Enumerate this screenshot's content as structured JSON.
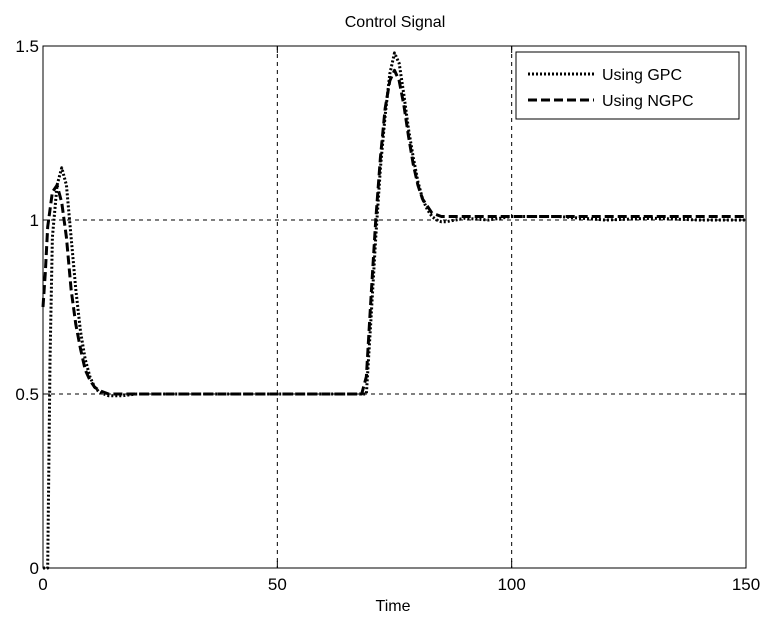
{
  "chart_data": {
    "type": "line",
    "title": "Control Signal",
    "xlabel": "Time",
    "ylabel": "",
    "xlim": [
      0,
      150
    ],
    "ylim": [
      0,
      1.5
    ],
    "xticks": [
      0,
      50,
      100,
      150
    ],
    "xtick_labels": [
      "0",
      "50",
      "100",
      "150"
    ],
    "yticks": [
      0,
      0.5,
      1,
      1.5
    ],
    "ytick_labels": [
      "0",
      "0.5",
      "1",
      "1.5"
    ],
    "grid": true,
    "legend_position": "top-right",
    "series": [
      {
        "name": "Using GPC",
        "style": "dotted",
        "color": "#000000",
        "x": [
          0,
          1,
          1.5,
          2,
          3,
          4,
          5,
          6,
          7,
          8,
          9,
          10,
          11,
          12,
          13,
          14,
          15,
          17,
          20,
          25,
          30,
          40,
          50,
          60,
          65,
          68,
          69,
          70,
          71,
          72,
          73,
          74,
          75,
          76,
          77,
          78,
          79,
          80,
          81,
          82,
          83,
          84,
          85,
          86,
          88,
          90,
          95,
          100,
          110,
          120,
          130,
          140,
          150
        ],
        "y": [
          0,
          0,
          0.6,
          0.95,
          1.1,
          1.15,
          1.1,
          0.95,
          0.8,
          0.68,
          0.6,
          0.55,
          0.52,
          0.505,
          0.5,
          0.495,
          0.495,
          0.495,
          0.5,
          0.5,
          0.5,
          0.5,
          0.5,
          0.5,
          0.5,
          0.5,
          0.5,
          0.72,
          0.95,
          1.15,
          1.3,
          1.42,
          1.48,
          1.45,
          1.36,
          1.26,
          1.18,
          1.11,
          1.06,
          1.03,
          1.01,
          1.0,
          0.995,
          0.995,
          1.0,
          1.005,
          1.0,
          1.01,
          1.01,
          1.0,
          1.005,
          1.0,
          1.0
        ]
      },
      {
        "name": "Using NGPC",
        "style": "dashed",
        "color": "#000000",
        "x": [
          0,
          0.5,
          1,
          2,
          3,
          4,
          5,
          6,
          7,
          8,
          9,
          10,
          11,
          12,
          13,
          14,
          15,
          17,
          20,
          25,
          30,
          40,
          50,
          60,
          65,
          68,
          69,
          70,
          71,
          72,
          73,
          74,
          75,
          76,
          77,
          78,
          79,
          80,
          81,
          82,
          83,
          84,
          85,
          86,
          88,
          90,
          95,
          100,
          110,
          120,
          130,
          140,
          150
        ],
        "y": [
          0.75,
          0.85,
          0.98,
          1.08,
          1.1,
          1.05,
          0.95,
          0.8,
          0.7,
          0.63,
          0.57,
          0.54,
          0.52,
          0.51,
          0.505,
          0.5,
          0.5,
          0.5,
          0.5,
          0.5,
          0.5,
          0.5,
          0.5,
          0.5,
          0.5,
          0.5,
          0.55,
          0.78,
          1.0,
          1.18,
          1.32,
          1.4,
          1.43,
          1.4,
          1.33,
          1.24,
          1.16,
          1.1,
          1.06,
          1.04,
          1.02,
          1.015,
          1.01,
          1.01,
          1.01,
          1.01,
          1.01,
          1.01,
          1.01,
          1.01,
          1.01,
          1.01,
          1.01
        ]
      }
    ]
  }
}
